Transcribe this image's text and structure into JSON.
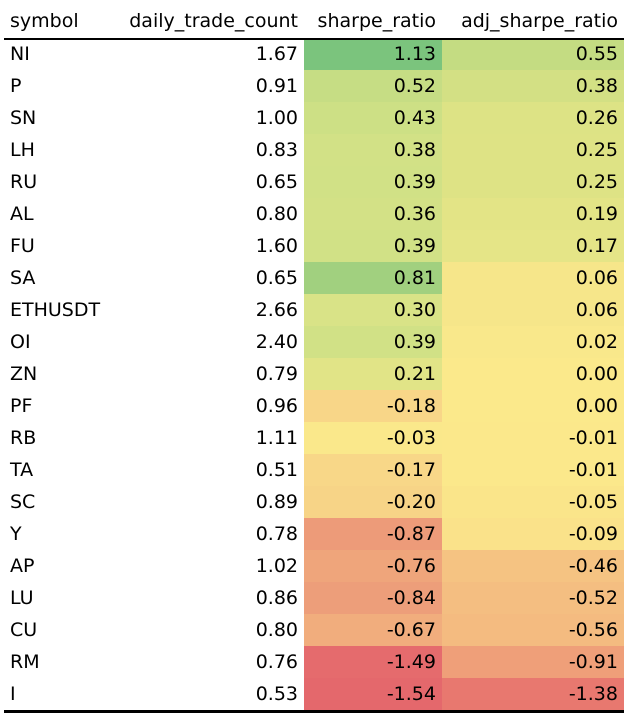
{
  "columns": [
    "symbol",
    "daily_trade_count",
    "sharpe_ratio",
    "adj_sharpe_ratio"
  ],
  "rows": [
    {
      "symbol": "NI",
      "daily_trade_count": "1.67",
      "sharpe_ratio": "1.13",
      "adj_sharpe_ratio": "0.55",
      "sharpe_color": "#7bc47d",
      "adj_color": "#c4dc82"
    },
    {
      "symbol": "P",
      "daily_trade_count": "0.91",
      "sharpe_ratio": "0.52",
      "adj_sharpe_ratio": "0.38",
      "sharpe_color": "#c6dd84",
      "adj_color": "#d3e084"
    },
    {
      "symbol": "SN",
      "daily_trade_count": "1.00",
      "sharpe_ratio": "0.43",
      "adj_sharpe_ratio": "0.26",
      "sharpe_color": "#cde085",
      "adj_color": "#dde385"
    },
    {
      "symbol": "LH",
      "daily_trade_count": "0.83",
      "sharpe_ratio": "0.38",
      "adj_sharpe_ratio": "0.25",
      "sharpe_color": "#d2e186",
      "adj_color": "#dee385"
    },
    {
      "symbol": "RU",
      "daily_trade_count": "0.65",
      "sharpe_ratio": "0.39",
      "adj_sharpe_ratio": "0.25",
      "sharpe_color": "#d1e186",
      "adj_color": "#dee385"
    },
    {
      "symbol": "AL",
      "daily_trade_count": "0.80",
      "sharpe_ratio": "0.36",
      "adj_sharpe_ratio": "0.19",
      "sharpe_color": "#d3e186",
      "adj_color": "#e3e486"
    },
    {
      "symbol": "FU",
      "daily_trade_count": "1.60",
      "sharpe_ratio": "0.39",
      "adj_sharpe_ratio": "0.17",
      "sharpe_color": "#d1e186",
      "adj_color": "#e5e587"
    },
    {
      "symbol": "SA",
      "daily_trade_count": "0.65",
      "sharpe_ratio": "0.81",
      "adj_sharpe_ratio": "0.06",
      "sharpe_color": "#a1d07f",
      "adj_color": "#f6e68a"
    },
    {
      "symbol": "ETHUSDT",
      "daily_trade_count": "2.66",
      "sharpe_ratio": "0.30",
      "adj_sharpe_ratio": "0.06",
      "sharpe_color": "#d9e387",
      "adj_color": "#f6e68a"
    },
    {
      "symbol": "OI",
      "daily_trade_count": "2.40",
      "sharpe_ratio": "0.39",
      "adj_sharpe_ratio": "0.02",
      "sharpe_color": "#d1e186",
      "adj_color": "#f9e88b"
    },
    {
      "symbol": "ZN",
      "daily_trade_count": "0.79",
      "sharpe_ratio": "0.21",
      "adj_sharpe_ratio": "0.00",
      "sharpe_color": "#e1e487",
      "adj_color": "#fbe98b"
    },
    {
      "symbol": "PF",
      "daily_trade_count": "0.96",
      "sharpe_ratio": "-0.18",
      "adj_sharpe_ratio": "0.00",
      "sharpe_color": "#f8d688",
      "adj_color": "#fbe98b"
    },
    {
      "symbol": "RB",
      "daily_trade_count": "1.11",
      "sharpe_ratio": "-0.03",
      "adj_sharpe_ratio": "-0.01",
      "sharpe_color": "#fae88b",
      "adj_color": "#fbe88b"
    },
    {
      "symbol": "TA",
      "daily_trade_count": "0.51",
      "sharpe_ratio": "-0.17",
      "adj_sharpe_ratio": "-0.01",
      "sharpe_color": "#f8d788",
      "adj_color": "#fbe88b"
    },
    {
      "symbol": "SC",
      "daily_trade_count": "0.89",
      "sharpe_ratio": "-0.20",
      "adj_sharpe_ratio": "-0.05",
      "sharpe_color": "#f7d487",
      "adj_color": "#fae58a"
    },
    {
      "symbol": "Y",
      "daily_trade_count": "0.78",
      "sharpe_ratio": "-0.87",
      "adj_sharpe_ratio": "-0.09",
      "sharpe_color": "#ed9b79",
      "adj_color": "#fae28a"
    },
    {
      "symbol": "AP",
      "daily_trade_count": "1.02",
      "sharpe_ratio": "-0.76",
      "adj_sharpe_ratio": "-0.46",
      "sharpe_color": "#efa57b",
      "adj_color": "#f5c382"
    },
    {
      "symbol": "LU",
      "daily_trade_count": "0.86",
      "sharpe_ratio": "-0.84",
      "adj_sharpe_ratio": "-0.52",
      "sharpe_color": "#ed9e7a",
      "adj_color": "#f4be81"
    },
    {
      "symbol": "CU",
      "daily_trade_count": "0.80",
      "sharpe_ratio": "-0.67",
      "adj_sharpe_ratio": "-0.56",
      "sharpe_color": "#f1ad7d",
      "adj_color": "#f4bb80"
    },
    {
      "symbol": "RM",
      "daily_trade_count": "0.76",
      "sharpe_ratio": "-1.49",
      "adj_sharpe_ratio": "-0.91",
      "sharpe_color": "#e56b6d",
      "adj_color": "#ef9f79"
    },
    {
      "symbol": "I",
      "daily_trade_count": "0.53",
      "sharpe_ratio": "-1.54",
      "adj_sharpe_ratio": "-1.38",
      "sharpe_color": "#e4686c",
      "adj_color": "#e8786f"
    }
  ]
}
